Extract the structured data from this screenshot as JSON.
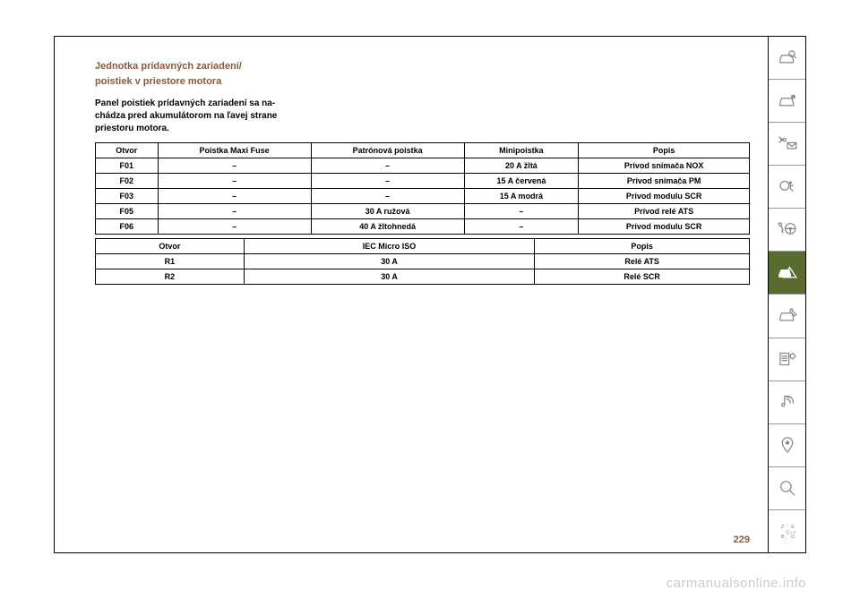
{
  "heading_line1": "Jednotka prídavných zariadení/",
  "heading_line2": "poistiek v priestore motora",
  "body_line1": "Panel poistiek prídavných zariadení sa na-",
  "body_line2": "chádza pred akumulátorom na ľavej strane",
  "body_line3": "priestoru motora.",
  "table1": {
    "headers": [
      "Otvor",
      "Poistka Maxi Fuse",
      "Patrónová poistka",
      "Minipoistka",
      "Popis"
    ],
    "rows": [
      [
        "F01",
        "–",
        "–",
        "20 A žltá",
        "Prívod snímača NOX"
      ],
      [
        "F02",
        "–",
        "–",
        "15 A červená",
        "Prívod snímača PM"
      ],
      [
        "F03",
        "–",
        "–",
        "15 A modrá",
        "Prívod modulu SCR"
      ],
      [
        "F05",
        "–",
        "30 A ružová",
        "–",
        "Prívod relé ATS"
      ],
      [
        "F06",
        "–",
        "40 A žltohnedá",
        "–",
        "Prívod modulu SCR"
      ]
    ]
  },
  "table2": {
    "headers": [
      "Otvor",
      "IEC Micro ISO",
      "Popis"
    ],
    "rows": [
      [
        "R1",
        "30 A",
        "Relé ATS"
      ],
      [
        "R2",
        "30 A",
        "Relé SCR"
      ]
    ]
  },
  "page_number": "229",
  "watermark": "carmanualsonline.info",
  "colors": {
    "heading_color": "#8b5a3c",
    "page_number_color": "#8b5a3c",
    "sidebar_active_bg": "#5a6b2f",
    "icon_inactive": "#888888",
    "icon_active": "#ffffff",
    "watermark_color": "#cccccc",
    "border_color": "#000000"
  },
  "sidebar_active_index": 5
}
